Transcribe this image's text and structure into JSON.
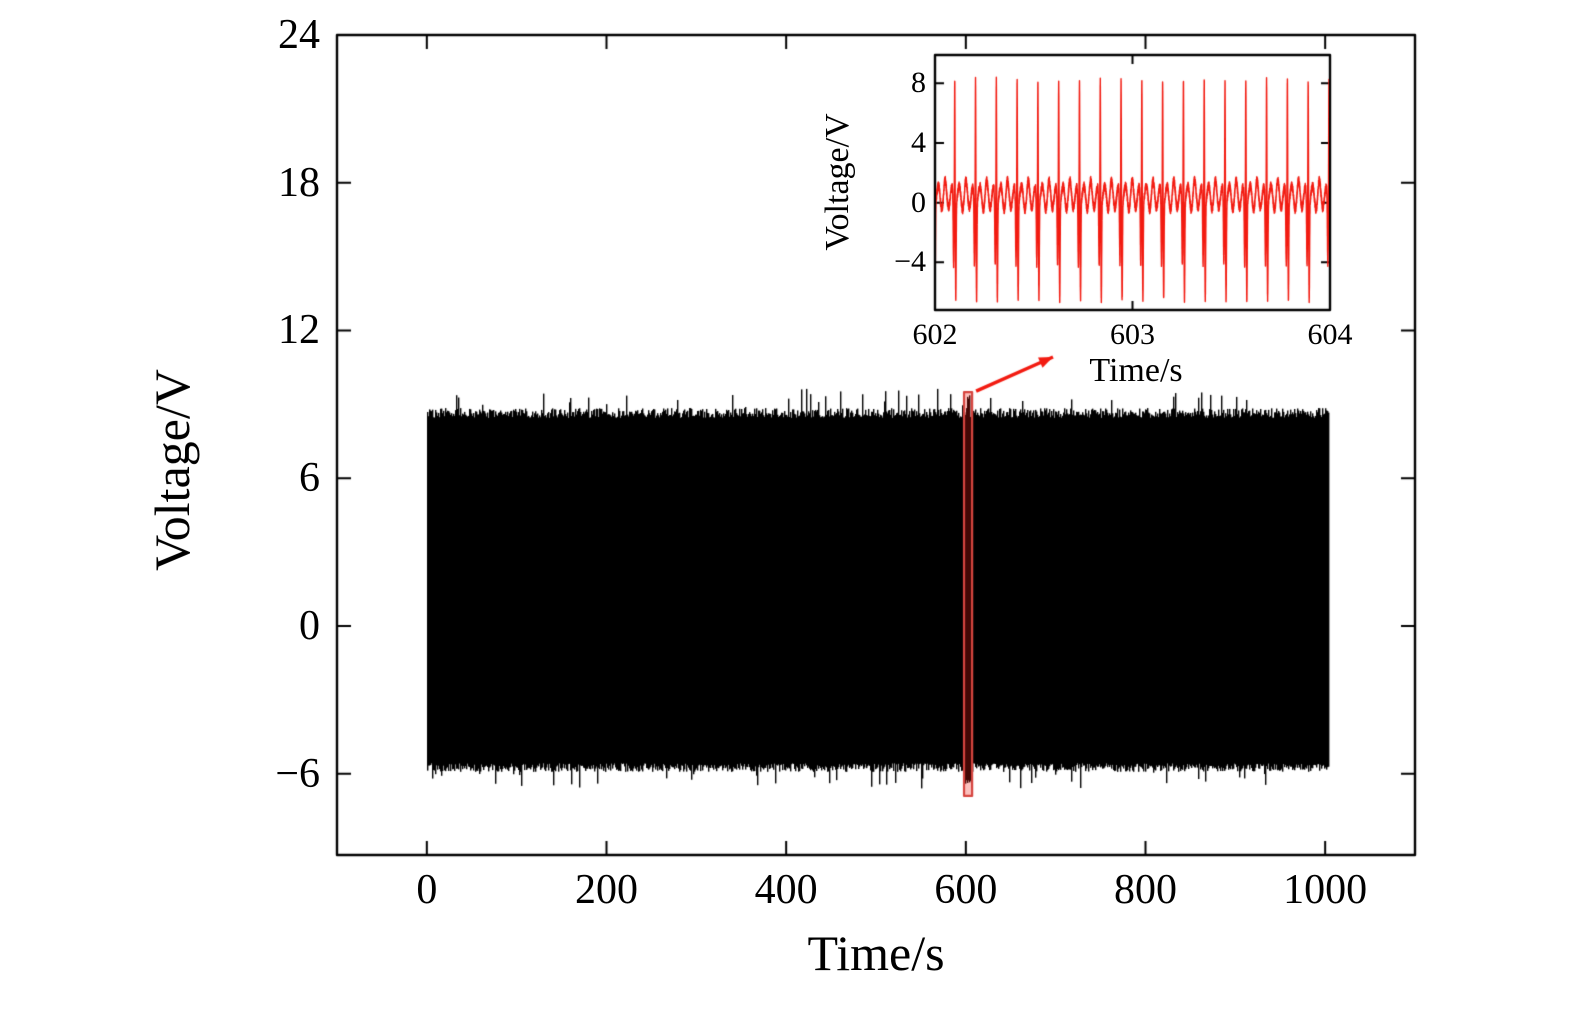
{
  "figure": {
    "background": "#ffffff",
    "ink": "#000000",
    "accent_red": "#f21b11",
    "highlight_red": "#d6453f"
  },
  "chart_data": [
    {
      "id": "main",
      "type": "line",
      "title": "",
      "xlabel": "Time/s",
      "ylabel": "Voltage/V",
      "xlim": [
        -100,
        1100
      ],
      "ylim": [
        -9.3,
        24
      ],
      "xticks": [
        0,
        200,
        400,
        600,
        800,
        1000
      ],
      "yticks": [
        -6,
        0,
        6,
        12,
        18,
        24
      ],
      "grid": false,
      "legend": false,
      "series": [
        {
          "name": "voltage-waveform-band",
          "color": "#000000",
          "x_start": 0,
          "x_end": 1003,
          "envelope_top_typ": 8.65,
          "envelope_top_max": 9.6,
          "envelope_bottom_typ": -5.75,
          "envelope_bottom_min": -6.6,
          "note": "dense fast oscillation rendered as a solid black band from 0 to ~1000 s"
        }
      ],
      "highlight_region": {
        "x_start": 598,
        "x_end": 607,
        "y_bottom": -6.9,
        "y_top": 9.5,
        "color": "#d6453f",
        "meaning": "zoomed interval 602-604 s shown in inset"
      },
      "annotation_arrow": {
        "from": "highlight_region",
        "to": "inset",
        "color": "#f21b11"
      }
    },
    {
      "id": "inset",
      "type": "line",
      "title": "",
      "xlabel": "Time/s",
      "ylabel": "Voltage/V",
      "xlim": [
        602,
        604
      ],
      "ylim": [
        -7.2,
        9.9
      ],
      "xticks": [
        602,
        603,
        604
      ],
      "yticks": [
        -4,
        0,
        4,
        8
      ],
      "grid": false,
      "legend": false,
      "series": [
        {
          "name": "zoomed-voltage-waveform",
          "color": "#f21b11",
          "cycles_per_second": 9.5,
          "spike_peak": 8.5,
          "spike_trough": -6.0,
          "baseline_level": 0.45,
          "baseline_wiggle": 1.1,
          "note": "periodic spiking signal, ~19 spikes between 602 s and 604 s"
        }
      ]
    }
  ]
}
